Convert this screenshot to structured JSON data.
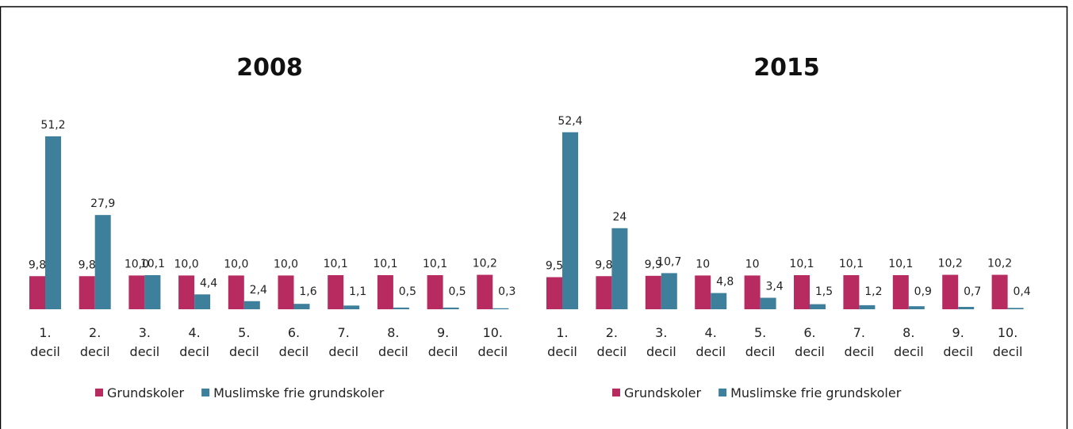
{
  "chart_data": [
    {
      "type": "bar",
      "title": "2008",
      "categories": [
        "1. decil",
        "2. decil",
        "3. decil",
        "4. decil",
        "5. decil",
        "6. decil",
        "7. decil",
        "8. decil",
        "9. decil",
        "10. decil"
      ],
      "series": [
        {
          "name": "Grundskoler",
          "color": "#b82b60",
          "values": [
            9.8,
            9.8,
            10.0,
            10.0,
            10.0,
            10.0,
            10.1,
            10.1,
            10.1,
            10.2
          ],
          "value_labels": [
            "9,8",
            "9,8",
            "10,0",
            "10,0",
            "10,0",
            "10,0",
            "10,1",
            "10,1",
            "10,1",
            "10,2"
          ]
        },
        {
          "name": "Muslimske frie grundskoler",
          "color": "#3e7f9b",
          "values": [
            51.2,
            27.9,
            10.1,
            4.4,
            2.4,
            1.6,
            1.1,
            0.5,
            0.5,
            0.3
          ],
          "value_labels": [
            "51,2",
            "27,9",
            "10,1",
            "4,4",
            "2,4",
            "1,6",
            "1,1",
            "0,5",
            "0,5",
            "0,3"
          ]
        }
      ],
      "legend": "bottom"
    },
    {
      "type": "bar",
      "title": "2015",
      "categories": [
        "1. decil",
        "2. decil",
        "3. decil",
        "4. decil",
        "5. decil",
        "6. decil",
        "7. decil",
        "8. decil",
        "9. decil",
        "10. decil"
      ],
      "series": [
        {
          "name": "Grundskoler",
          "color": "#b82b60",
          "values": [
            9.5,
            9.8,
            9.9,
            10,
            10,
            10.1,
            10.1,
            10.1,
            10.2,
            10.2
          ],
          "value_labels": [
            "9,5",
            "9,8",
            "9,9",
            "10",
            "10",
            "10,1",
            "10,1",
            "10,1",
            "10,2",
            "10,2"
          ]
        },
        {
          "name": "Muslimske frie grundskoler",
          "color": "#3e7f9b",
          "values": [
            52.4,
            24,
            10.7,
            4.8,
            3.4,
            1.5,
            1.2,
            0.9,
            0.7,
            0.4
          ],
          "value_labels": [
            "52,4",
            "24",
            "10,7",
            "4,8",
            "3,4",
            "1,5",
            "1,2",
            "0,9",
            "0,7",
            "0,4"
          ]
        }
      ],
      "legend": "bottom"
    }
  ]
}
